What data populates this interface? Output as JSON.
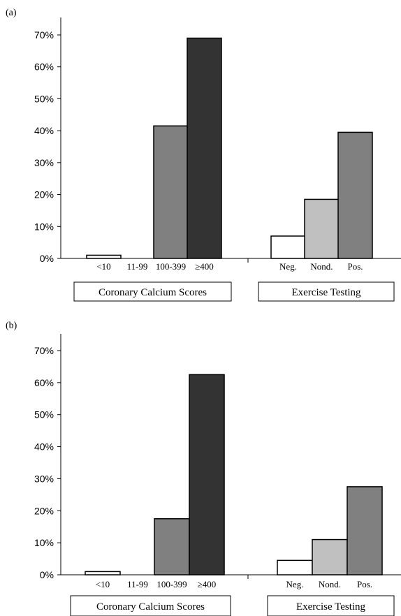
{
  "chart_data": [
    {
      "panel_label": "(a)",
      "type": "bar",
      "ylim": [
        0,
        70
      ],
      "yticks": [
        "0%",
        "10%",
        "20%",
        "30%",
        "40%",
        "50%",
        "60%",
        "70%"
      ],
      "groups": [
        {
          "label": "Coronary Calcium Scores",
          "categories": [
            "<10",
            "11-99",
            "100-399",
            "≥400"
          ],
          "values": [
            1,
            0,
            41.5,
            69
          ],
          "colors": [
            "#ffffff",
            "#ffffff",
            "#808080",
            "#333333"
          ]
        },
        {
          "label": "Exercise Testing",
          "categories": [
            "Neg.",
            "Nond.",
            "Pos."
          ],
          "values": [
            7,
            18.5,
            39.5
          ],
          "colors": [
            "#ffffff",
            "#c0c0c0",
            "#808080"
          ]
        }
      ]
    },
    {
      "panel_label": "(b)",
      "type": "bar",
      "ylim": [
        0,
        70
      ],
      "yticks": [
        "0%",
        "10%",
        "20%",
        "30%",
        "40%",
        "50%",
        "60%",
        "70%"
      ],
      "groups": [
        {
          "label": "Coronary Calcium Scores",
          "categories": [
            "<10",
            "11-99",
            "100-399",
            "≥400"
          ],
          "values": [
            1,
            0,
            17.5,
            62.5
          ],
          "colors": [
            "#ffffff",
            "#ffffff",
            "#808080",
            "#333333"
          ]
        },
        {
          "label": "Exercise Testing",
          "categories": [
            "Neg.",
            "Nond.",
            "Pos."
          ],
          "values": [
            4.5,
            11,
            27.5
          ],
          "colors": [
            "#ffffff",
            "#c0c0c0",
            "#808080"
          ]
        }
      ]
    }
  ]
}
